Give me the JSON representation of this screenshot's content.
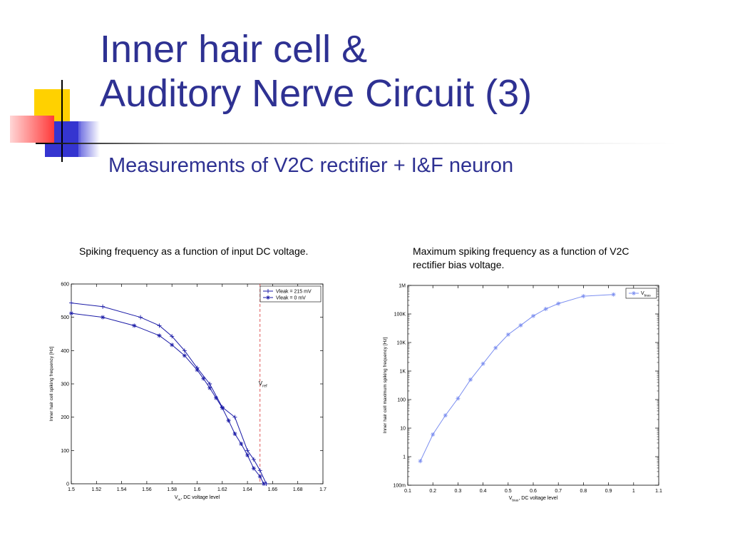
{
  "slide": {
    "title_line1": "Inner hair cell &",
    "title_line2": "Auditory Nerve Circuit (3)",
    "subtitle": "Measurements of V2C rectifier + I&F neuron",
    "caption_left": "Spiking frequency as a function of input DC voltage.",
    "caption_right": "Maximum spiking frequency as a function of V2C rectifier bias voltage.",
    "colors": {
      "title": "#2e3192",
      "deco_yellow": "#ffd100",
      "deco_blue": "#3535d0",
      "deco_red": "#ff4040"
    }
  },
  "chart_data": [
    {
      "type": "line",
      "ylabel": "Inner hair cell spiking frequency [Hz]",
      "xlabel_main": "V",
      "xlabel_sub": "in",
      "xlabel_rest": ", DC voltage level",
      "xlim": [
        1.5,
        1.7
      ],
      "ylim": [
        0,
        600
      ],
      "xticks": [
        "1.5",
        "1.52",
        "1.54",
        "1.56",
        "1.58",
        "1.6",
        "1.62",
        "1.64",
        "1.66",
        "1.68",
        "1.7"
      ],
      "yticks": [
        "0",
        "100",
        "200",
        "300",
        "400",
        "500",
        "600"
      ],
      "grid": false,
      "legend_position": "top-right",
      "vref_x": 1.65,
      "vref_label_main": "V",
      "vref_label_sub": "ref",
      "line_color": "#1a1aa6",
      "series": [
        {
          "name": "Vleak = 215 mV",
          "x": [
            1.5,
            1.525,
            1.555,
            1.57,
            1.58,
            1.59,
            1.6,
            1.61,
            1.62,
            1.63,
            1.64,
            1.645,
            1.65,
            1.655
          ],
          "y": [
            543,
            532,
            500,
            475,
            443,
            400,
            348,
            300,
            230,
            200,
            100,
            73,
            40,
            0
          ]
        },
        {
          "name": "Vleak =   0 mV",
          "x": [
            1.5,
            1.525,
            1.55,
            1.57,
            1.58,
            1.59,
            1.6,
            1.605,
            1.61,
            1.615,
            1.62,
            1.625,
            1.63,
            1.635,
            1.64,
            1.645,
            1.65,
            1.653
          ],
          "y": [
            512,
            500,
            475,
            445,
            417,
            385,
            342,
            316,
            288,
            258,
            228,
            190,
            150,
            120,
            86,
            46,
            22,
            0
          ]
        }
      ]
    },
    {
      "type": "line",
      "ylabel": "Inner hair cell maximum spiking frequency [Hz]",
      "xlabel_main": "V",
      "xlabel_sub": "bias",
      "xlabel_rest": ", DC voltage level",
      "xlim": [
        0.1,
        1.1
      ],
      "ylim": [
        0.1,
        1000000
      ],
      "log_y": true,
      "xticks": [
        "0.1",
        "0.2",
        "0.3",
        "0.4",
        "0.5",
        "0.6",
        "0.7",
        "0.8",
        "0.9",
        "1",
        "1.1"
      ],
      "yticks": [
        "100m",
        "1",
        "10",
        "100",
        "1K",
        "10K",
        "100K",
        "1M"
      ],
      "grid": false,
      "legend_position": "top-right",
      "line_color": "#7b8ef0",
      "series": [
        {
          "name_main": "V",
          "name_sub": "bias",
          "x": [
            0.15,
            0.2,
            0.25,
            0.3,
            0.35,
            0.4,
            0.45,
            0.5,
            0.55,
            0.6,
            0.65,
            0.7,
            0.8,
            0.92
          ],
          "y": [
            0.7,
            6,
            28,
            110,
            500,
            1800,
            6500,
            19000,
            40000,
            85000,
            150000,
            230000,
            420000,
            480000
          ]
        }
      ]
    }
  ]
}
